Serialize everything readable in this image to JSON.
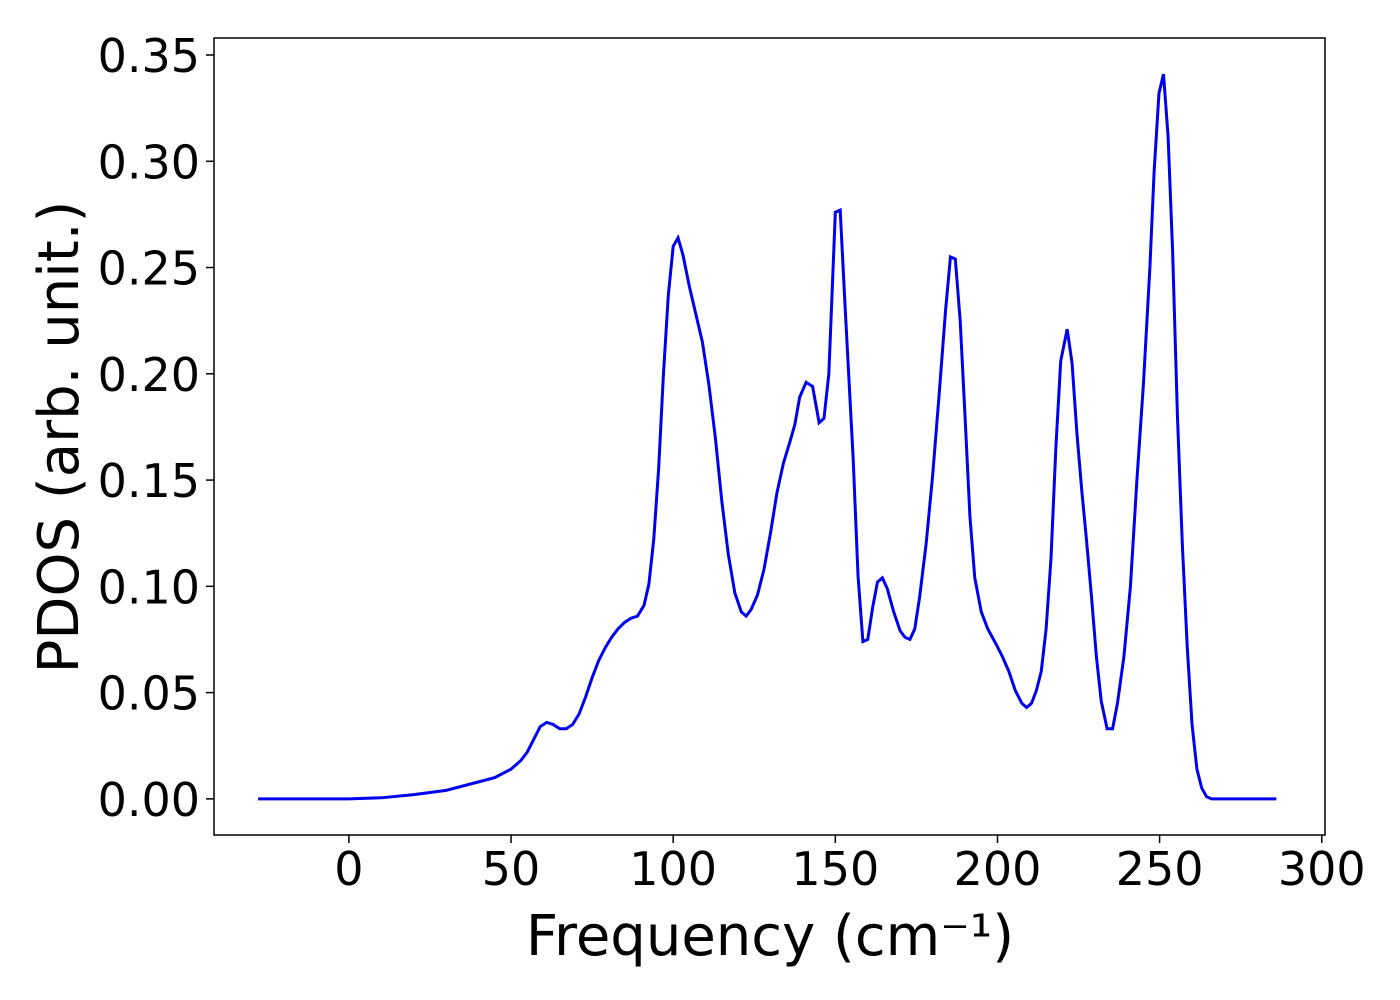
{
  "chart_data": {
    "type": "line",
    "xlabel": "Frequency (cm⁻¹)",
    "ylabel": "PDOS (arb. unit.)",
    "xlim": [
      -41.6,
      301
    ],
    "ylim": [
      -0.017,
      0.358
    ],
    "xticks": [
      0,
      50,
      100,
      150,
      200,
      250,
      300
    ],
    "yticks": [
      {
        "value": 0,
        "label": "0.00"
      },
      {
        "value": 0.05,
        "label": "0.05"
      },
      {
        "value": 0.1,
        "label": "0.10"
      },
      {
        "value": 0.15,
        "label": "0.15"
      },
      {
        "value": 0.2,
        "label": "0.20"
      },
      {
        "value": 0.25,
        "label": "0.25"
      },
      {
        "value": 0.3,
        "label": "0.30"
      },
      {
        "value": 0.35,
        "label": "0.35"
      }
    ],
    "series": [
      {
        "color": "#0000ee",
        "x": [
          -28,
          0,
          10,
          20,
          30,
          40,
          45,
          50,
          53,
          55,
          57,
          59,
          61,
          63,
          65,
          67,
          69,
          71,
          73,
          75,
          77,
          79,
          81,
          83,
          85,
          87,
          89,
          91,
          92.5,
          94,
          95.5,
          97,
          98.5,
          100,
          101.5,
          103,
          105,
          107,
          109,
          111,
          113,
          115,
          117,
          119,
          121,
          122.5,
          124,
          126,
          128,
          130,
          132,
          134,
          136,
          137.5,
          139,
          141,
          143,
          145,
          146.5,
          148,
          150,
          151.5,
          153,
          155.5,
          157,
          158.5,
          160,
          161.5,
          163,
          164.5,
          166,
          168,
          170,
          171.5,
          173,
          174.5,
          176,
          178,
          180,
          182,
          184,
          185.5,
          187,
          188.5,
          190,
          191.5,
          193,
          195,
          197,
          199.5,
          201.5,
          203.5,
          205.5,
          207.5,
          209,
          210.5,
          212,
          213.5,
          215,
          216.5,
          218,
          219.5,
          221.5,
          223,
          224.5,
          226,
          227.5,
          229,
          230.5,
          232,
          233.8,
          235.5,
          237,
          239,
          241,
          243,
          245,
          247,
          248.3,
          249.8,
          251.2,
          252.6,
          254,
          255.5,
          257,
          258.5,
          260,
          261.5,
          263,
          264.5,
          266,
          286
        ],
        "values": [
          0,
          0,
          0.0005,
          0.002,
          0.004,
          0.008,
          0.01,
          0.014,
          0.018,
          0.022,
          0.028,
          0.034,
          0.036,
          0.035,
          0.033,
          0.033,
          0.035,
          0.04,
          0.048,
          0.057,
          0.065,
          0.071,
          0.076,
          0.08,
          0.083,
          0.085,
          0.086,
          0.091,
          0.101,
          0.122,
          0.155,
          0.2,
          0.237,
          0.26,
          0.264,
          0.256,
          0.241,
          0.228,
          0.215,
          0.195,
          0.17,
          0.14,
          0.115,
          0.097,
          0.088,
          0.086,
          0.089,
          0.096,
          0.108,
          0.125,
          0.144,
          0.158,
          0.168,
          0.176,
          0.189,
          0.196,
          0.194,
          0.177,
          0.179,
          0.2,
          0.276,
          0.277,
          0.232,
          0.16,
          0.105,
          0.074,
          0.075,
          0.09,
          0.102,
          0.104,
          0.099,
          0.088,
          0.079,
          0.076,
          0.075,
          0.08,
          0.095,
          0.12,
          0.152,
          0.19,
          0.23,
          0.255,
          0.254,
          0.225,
          0.18,
          0.133,
          0.104,
          0.088,
          0.08,
          0.073,
          0.067,
          0.06,
          0.051,
          0.045,
          0.043,
          0.045,
          0.051,
          0.06,
          0.08,
          0.113,
          0.165,
          0.206,
          0.221,
          0.205,
          0.172,
          0.145,
          0.121,
          0.095,
          0.067,
          0.046,
          0.033,
          0.033,
          0.045,
          0.067,
          0.1,
          0.15,
          0.195,
          0.25,
          0.295,
          0.332,
          0.341,
          0.312,
          0.258,
          0.18,
          0.12,
          0.072,
          0.035,
          0.014,
          0.005,
          0.001,
          0,
          0
        ]
      }
    ]
  }
}
